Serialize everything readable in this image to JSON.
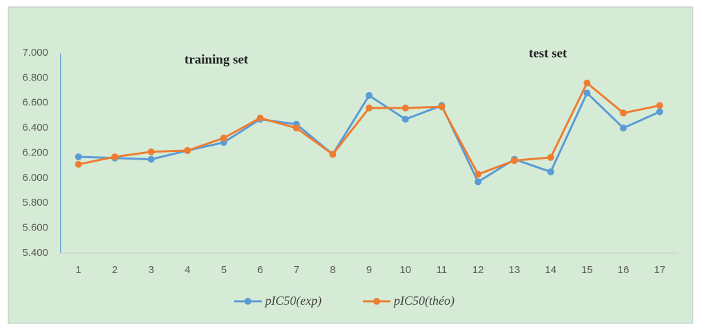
{
  "chart_data": {
    "type": "line",
    "categories": [
      "1",
      "2",
      "3",
      "4",
      "5",
      "6",
      "7",
      "8",
      "9",
      "10",
      "11",
      "12",
      "13",
      "14",
      "15",
      "16",
      "17"
    ],
    "series": [
      {
        "name": "pIC50(exp)",
        "color": "#5b9bd5",
        "values": [
          6.17,
          6.16,
          6.15,
          6.22,
          6.285,
          6.47,
          6.43,
          6.19,
          6.66,
          6.47,
          6.58,
          5.97,
          6.15,
          6.05,
          6.68,
          6.4,
          6.53
        ]
      },
      {
        "name": "pIC50(théo)",
        "color": "#ed7d31",
        "values": [
          6.11,
          6.17,
          6.21,
          6.22,
          6.32,
          6.48,
          6.4,
          6.19,
          6.56,
          6.56,
          6.57,
          6.03,
          6.14,
          6.165,
          6.76,
          6.52,
          6.58
        ]
      }
    ],
    "ylim": [
      5.4,
      7.0
    ],
    "yticks": [
      {
        "value": 5.4,
        "label": "5.400"
      },
      {
        "value": 5.6,
        "label": "5.600"
      },
      {
        "value": 5.8,
        "label": "5.800"
      },
      {
        "value": 6.0,
        "label": "6.000"
      },
      {
        "value": 6.2,
        "label": "6.200"
      },
      {
        "value": 6.4,
        "label": "6.400"
      },
      {
        "value": 6.6,
        "label": "6.600"
      },
      {
        "value": 6.8,
        "label": "6.800"
      },
      {
        "value": 7.0,
        "label": "7.000"
      }
    ],
    "annotations": [
      "training set",
      "test set"
    ],
    "grid": false,
    "legend": "bottom"
  }
}
